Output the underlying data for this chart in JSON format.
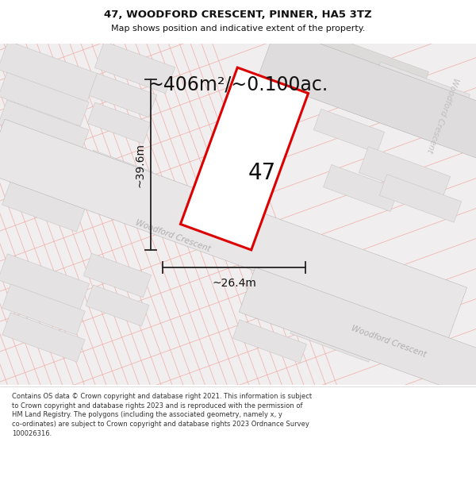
{
  "title": "47, WOODFORD CRESCENT, PINNER, HA5 3TZ",
  "subtitle": "Map shows position and indicative extent of the property.",
  "area_label": "~406m²/~0.100ac.",
  "number_label": "47",
  "width_label": "~26.4m",
  "height_label": "~39.6m",
  "footer": "Contains OS data © Crown copyright and database right 2021. This information is subject\nto Crown copyright and database rights 2023 and is reproduced with the permission of\nHM Land Registry. The polygons (including the associated geometry, namely x, y\nco-ordinates) are subject to Crown copyright and database rights 2023 Ordnance Survey\n100026316.",
  "bg_color": "#f2f0f0",
  "road_fill": "#e2e0e0",
  "road_edge": "#cccccc",
  "plot_line_color": "#dd0000",
  "dim_line_color": "#222222",
  "pink": "#f0a8a0",
  "road_label_color": "#b0aeae",
  "ang": -20
}
